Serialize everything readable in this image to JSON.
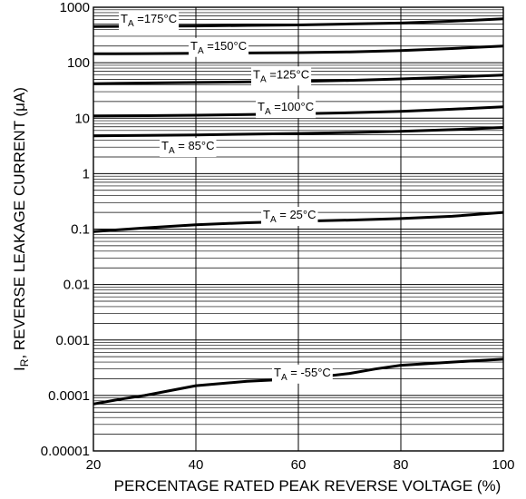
{
  "chart_data": {
    "type": "line",
    "title": "",
    "xlabel": "PERCENTAGE RATED PEAK REVERSE VOLTAGE (%)",
    "ylabel_main": "I",
    "ylabel_sub": "R",
    "ylabel_rest": ", REVERSE LEAKAGE CURRENT (μA)",
    "y_scale": "log",
    "xlim": [
      20,
      100
    ],
    "ylim": [
      1e-05,
      1000
    ],
    "grid": true,
    "x_ticks": [
      "20",
      "40",
      "60",
      "80",
      "100"
    ],
    "y_ticks": [
      "0.00001",
      "0.0001",
      "0.001",
      "0.01",
      "0.1",
      "1",
      "10",
      "100",
      "1000"
    ],
    "series": [
      {
        "label_main": "T",
        "label_sub": "A",
        "label_rest": " =175°C",
        "x": [
          20,
          30,
          40,
          50,
          60,
          70,
          80,
          90,
          100
        ],
        "y": [
          450,
          455,
          460,
          470,
          480,
          500,
          520,
          560,
          620
        ]
      },
      {
        "label_main": "T",
        "label_sub": "A",
        "label_rest": " =150°C",
        "x": [
          20,
          30,
          40,
          50,
          60,
          70,
          80,
          90,
          100
        ],
        "y": [
          145,
          146,
          148,
          150,
          152,
          157,
          165,
          180,
          200
        ]
      },
      {
        "label_main": "T",
        "label_sub": "A",
        "label_rest": " =125°C",
        "x": [
          20,
          30,
          40,
          50,
          60,
          70,
          80,
          90,
          100
        ],
        "y": [
          42,
          43,
          44,
          45,
          46,
          48,
          51,
          55,
          60
        ]
      },
      {
        "label_main": "T",
        "label_sub": "A",
        "label_rest": " =100°C",
        "x": [
          20,
          30,
          40,
          50,
          60,
          70,
          80,
          90,
          100
        ],
        "y": [
          11,
          11.1,
          11.3,
          11.6,
          12,
          12.5,
          13.3,
          14.5,
          16
        ]
      },
      {
        "label_main": "T",
        "label_sub": "A",
        "label_rest": " = 85°C",
        "x": [
          20,
          30,
          40,
          50,
          60,
          70,
          80,
          90,
          100
        ],
        "y": [
          4.8,
          4.9,
          5.0,
          5.15,
          5.3,
          5.5,
          5.8,
          6.2,
          6.8
        ]
      },
      {
        "label_main": "T",
        "label_sub": "A",
        "label_rest": " = 25°C",
        "x": [
          20,
          30,
          40,
          50,
          60,
          70,
          80,
          90,
          100
        ],
        "y": [
          0.09,
          0.105,
          0.12,
          0.13,
          0.138,
          0.145,
          0.155,
          0.17,
          0.2
        ]
      },
      {
        "label_main": "T",
        "label_sub": "A",
        "label_rest": " = -55°C",
        "x": [
          20,
          25,
          30,
          40,
          50,
          60,
          65,
          70,
          75,
          80,
          90,
          100
        ],
        "y": [
          7e-05,
          8.5e-05,
          0.0001,
          0.00015,
          0.00018,
          0.0002,
          0.00022,
          0.00025,
          0.0003,
          0.00035,
          0.0004,
          0.00045
        ]
      }
    ]
  }
}
